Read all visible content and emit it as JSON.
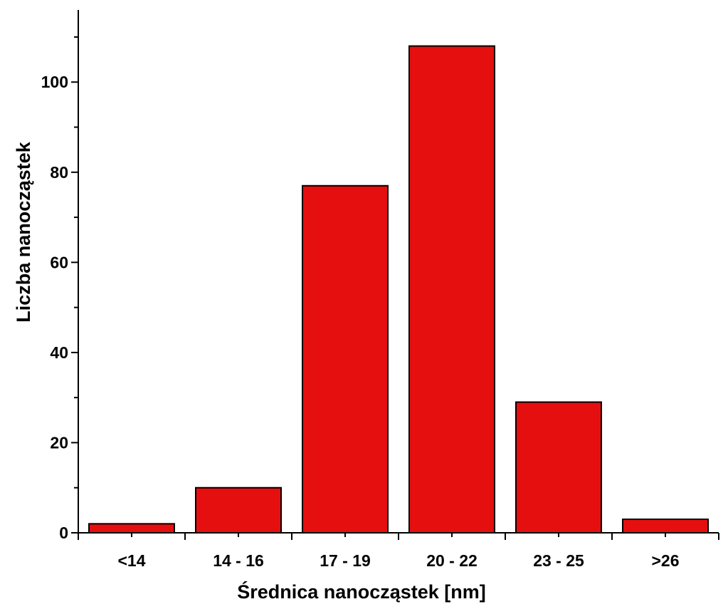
{
  "chart_data": {
    "type": "bar",
    "title": "",
    "xlabel": "Średnica nanocząstek [nm]",
    "ylabel": "Liczba nanocząstek",
    "categories": [
      "<14",
      "14 - 16",
      "17 - 19",
      "20 - 22",
      "23 - 25",
      ">26"
    ],
    "values": [
      2,
      10,
      77,
      108,
      29,
      3
    ],
    "ylim": [
      0,
      116
    ],
    "yticks": [
      0,
      20,
      40,
      60,
      80,
      100
    ],
    "ytick_labels": [
      "0",
      "20",
      "40",
      "60",
      "80",
      "100"
    ],
    "y_minor_step": 10,
    "grid": false,
    "legend": "none",
    "bar_color": "#E60F0F",
    "bar_edge_color": "#000000"
  }
}
